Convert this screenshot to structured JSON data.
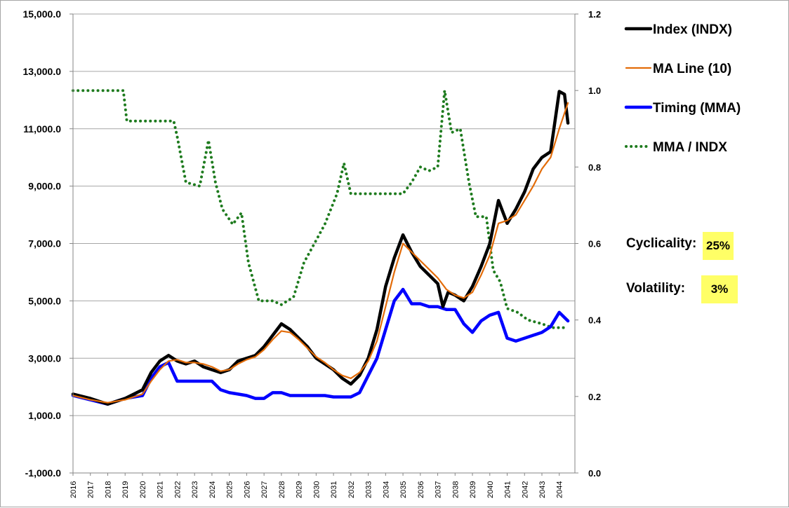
{
  "chart_data": {
    "type": "line",
    "title": "",
    "x_categories": [
      "2016",
      "2017",
      "2018",
      "2019",
      "2020",
      "2021",
      "2022",
      "2023",
      "2024",
      "2025",
      "2026",
      "2027",
      "2028",
      "2029",
      "2030",
      "2031",
      "2032",
      "2033",
      "2034",
      "2035",
      "2036",
      "2037",
      "2038",
      "2039",
      "2040",
      "2041",
      "2042",
      "2043",
      "2044"
    ],
    "y_left": {
      "min": -1000,
      "max": 15000,
      "ticks": [
        "-1,000.0",
        "1,000.0",
        "3,000.0",
        "5,000.0",
        "7,000.0",
        "9,000.0",
        "11,000.0",
        "13,000.0",
        "15,000.0"
      ]
    },
    "y_right": {
      "min": 0,
      "max": 1.2,
      "ticks": [
        "0.0",
        "0.2",
        "0.4",
        "0.6",
        "0.8",
        "1.0",
        "1.2"
      ]
    },
    "grid": "horizontal",
    "legend_position": "top-right",
    "series": [
      {
        "name": "Index (INDX)",
        "axis": "left",
        "color": "#000000",
        "style": "solid-thick",
        "points": [
          [
            2016.0,
            1750
          ],
          [
            2017.0,
            1600
          ],
          [
            2018.0,
            1400
          ],
          [
            2019.0,
            1600
          ],
          [
            2020.0,
            1900
          ],
          [
            2020.5,
            2500
          ],
          [
            2021.0,
            2900
          ],
          [
            2021.5,
            3100
          ],
          [
            2022.0,
            2900
          ],
          [
            2022.5,
            2800
          ],
          [
            2023.0,
            2900
          ],
          [
            2023.5,
            2700
          ],
          [
            2024.0,
            2600
          ],
          [
            2024.5,
            2500
          ],
          [
            2025.0,
            2600
          ],
          [
            2025.5,
            2900
          ],
          [
            2026.0,
            3000
          ],
          [
            2026.5,
            3100
          ],
          [
            2027.0,
            3400
          ],
          [
            2027.5,
            3800
          ],
          [
            2028.0,
            4200
          ],
          [
            2028.5,
            4000
          ],
          [
            2029.0,
            3700
          ],
          [
            2029.5,
            3400
          ],
          [
            2030.0,
            3000
          ],
          [
            2030.5,
            2800
          ],
          [
            2031.0,
            2600
          ],
          [
            2031.5,
            2300
          ],
          [
            2032.0,
            2100
          ],
          [
            2032.5,
            2400
          ],
          [
            2033.0,
            3000
          ],
          [
            2033.5,
            4000
          ],
          [
            2034.0,
            5500
          ],
          [
            2034.5,
            6500
          ],
          [
            2035.0,
            7300
          ],
          [
            2035.5,
            6700
          ],
          [
            2036.0,
            6200
          ],
          [
            2036.5,
            5900
          ],
          [
            2037.0,
            5600
          ],
          [
            2037.3,
            4800
          ],
          [
            2037.6,
            5300
          ],
          [
            2038.0,
            5200
          ],
          [
            2038.5,
            5000
          ],
          [
            2039.0,
            5500
          ],
          [
            2039.5,
            6200
          ],
          [
            2040.0,
            7000
          ],
          [
            2040.5,
            8500
          ],
          [
            2041.0,
            7700
          ],
          [
            2041.5,
            8200
          ],
          [
            2042.0,
            8800
          ],
          [
            2042.5,
            9600
          ],
          [
            2043.0,
            10000
          ],
          [
            2043.5,
            10200
          ],
          [
            2044.0,
            12300
          ],
          [
            2044.3,
            12200
          ],
          [
            2044.5,
            11200
          ]
        ]
      },
      {
        "name": "MA Line (10)",
        "axis": "left",
        "color": "#e36c09",
        "style": "solid",
        "points": [
          [
            2016.0,
            1700
          ],
          [
            2017.0,
            1550
          ],
          [
            2018.0,
            1450
          ],
          [
            2019.0,
            1550
          ],
          [
            2020.0,
            1750
          ],
          [
            2020.5,
            2200
          ],
          [
            2021.0,
            2600
          ],
          [
            2021.5,
            2900
          ],
          [
            2022.0,
            2950
          ],
          [
            2022.5,
            2850
          ],
          [
            2023.0,
            2850
          ],
          [
            2023.5,
            2800
          ],
          [
            2024.0,
            2700
          ],
          [
            2024.5,
            2550
          ],
          [
            2025.0,
            2600
          ],
          [
            2025.5,
            2800
          ],
          [
            2026.0,
            2950
          ],
          [
            2026.5,
            3050
          ],
          [
            2027.0,
            3300
          ],
          [
            2027.5,
            3650
          ],
          [
            2028.0,
            3950
          ],
          [
            2028.5,
            3900
          ],
          [
            2029.0,
            3650
          ],
          [
            2029.5,
            3350
          ],
          [
            2030.0,
            3050
          ],
          [
            2030.5,
            2850
          ],
          [
            2031.0,
            2600
          ],
          [
            2031.5,
            2400
          ],
          [
            2032.0,
            2300
          ],
          [
            2032.5,
            2500
          ],
          [
            2033.0,
            2900
          ],
          [
            2033.5,
            3600
          ],
          [
            2034.0,
            4800
          ],
          [
            2034.5,
            6000
          ],
          [
            2035.0,
            7000
          ],
          [
            2035.5,
            6700
          ],
          [
            2036.0,
            6400
          ],
          [
            2036.5,
            6100
          ],
          [
            2037.0,
            5800
          ],
          [
            2037.5,
            5400
          ],
          [
            2038.0,
            5200
          ],
          [
            2038.5,
            5100
          ],
          [
            2039.0,
            5300
          ],
          [
            2039.5,
            5900
          ],
          [
            2040.0,
            6600
          ],
          [
            2040.5,
            7700
          ],
          [
            2041.0,
            7800
          ],
          [
            2041.5,
            8000
          ],
          [
            2042.0,
            8500
          ],
          [
            2042.5,
            9000
          ],
          [
            2043.0,
            9600
          ],
          [
            2043.5,
            10000
          ],
          [
            2044.0,
            11000
          ],
          [
            2044.5,
            11900
          ]
        ]
      },
      {
        "name": "Timing (MMA)",
        "axis": "left",
        "color": "#0000ff",
        "style": "solid-thick",
        "points": [
          [
            2016.0,
            1700
          ],
          [
            2017.0,
            1550
          ],
          [
            2018.0,
            1400
          ],
          [
            2019.0,
            1600
          ],
          [
            2020.0,
            1700
          ],
          [
            2020.5,
            2300
          ],
          [
            2021.0,
            2700
          ],
          [
            2021.5,
            2850
          ],
          [
            2022.0,
            2200
          ],
          [
            2022.5,
            2200
          ],
          [
            2023.0,
            2200
          ],
          [
            2023.5,
            2200
          ],
          [
            2024.0,
            2200
          ],
          [
            2024.5,
            1900
          ],
          [
            2025.0,
            1800
          ],
          [
            2025.5,
            1750
          ],
          [
            2026.0,
            1700
          ],
          [
            2026.5,
            1600
          ],
          [
            2027.0,
            1600
          ],
          [
            2027.5,
            1800
          ],
          [
            2028.0,
            1800
          ],
          [
            2028.5,
            1700
          ],
          [
            2029.0,
            1700
          ],
          [
            2029.5,
            1700
          ],
          [
            2030.0,
            1700
          ],
          [
            2030.5,
            1700
          ],
          [
            2031.0,
            1650
          ],
          [
            2031.5,
            1650
          ],
          [
            2032.0,
            1650
          ],
          [
            2032.5,
            1800
          ],
          [
            2033.0,
            2400
          ],
          [
            2033.5,
            3000
          ],
          [
            2034.0,
            4000
          ],
          [
            2034.5,
            5000
          ],
          [
            2035.0,
            5400
          ],
          [
            2035.5,
            4900
          ],
          [
            2036.0,
            4900
          ],
          [
            2036.5,
            4800
          ],
          [
            2037.0,
            4800
          ],
          [
            2037.5,
            4700
          ],
          [
            2038.0,
            4700
          ],
          [
            2038.5,
            4200
          ],
          [
            2039.0,
            3900
          ],
          [
            2039.5,
            4300
          ],
          [
            2040.0,
            4500
          ],
          [
            2040.5,
            4600
          ],
          [
            2041.0,
            3700
          ],
          [
            2041.5,
            3600
          ],
          [
            2042.0,
            3700
          ],
          [
            2042.5,
            3800
          ],
          [
            2043.0,
            3900
          ],
          [
            2043.5,
            4100
          ],
          [
            2044.0,
            4600
          ],
          [
            2044.5,
            4300
          ]
        ]
      },
      {
        "name": "MMA / INDX",
        "axis": "right",
        "color": "#1e7b1e",
        "style": "dotted",
        "points": [
          [
            2016.0,
            1.0
          ],
          [
            2018.9,
            1.0
          ],
          [
            2019.1,
            0.92
          ],
          [
            2021.8,
            0.92
          ],
          [
            2022.0,
            0.88
          ],
          [
            2022.5,
            0.76
          ],
          [
            2023.3,
            0.75
          ],
          [
            2023.8,
            0.87
          ],
          [
            2024.2,
            0.76
          ],
          [
            2024.6,
            0.69
          ],
          [
            2025.2,
            0.65
          ],
          [
            2025.7,
            0.68
          ],
          [
            2026.1,
            0.55
          ],
          [
            2026.7,
            0.45
          ],
          [
            2027.5,
            0.45
          ],
          [
            2028.0,
            0.44
          ],
          [
            2028.7,
            0.46
          ],
          [
            2029.3,
            0.55
          ],
          [
            2029.9,
            0.6
          ],
          [
            2030.5,
            0.65
          ],
          [
            2031.2,
            0.73
          ],
          [
            2031.6,
            0.81
          ],
          [
            2032.0,
            0.73
          ],
          [
            2035.0,
            0.73
          ],
          [
            2035.5,
            0.76
          ],
          [
            2036.0,
            0.8
          ],
          [
            2036.5,
            0.79
          ],
          [
            2037.0,
            0.8
          ],
          [
            2037.4,
            1.0
          ],
          [
            2037.8,
            0.89
          ],
          [
            2038.3,
            0.9
          ],
          [
            2038.8,
            0.76
          ],
          [
            2039.2,
            0.67
          ],
          [
            2039.8,
            0.67
          ],
          [
            2040.2,
            0.53
          ],
          [
            2040.6,
            0.5
          ],
          [
            2041.0,
            0.43
          ],
          [
            2041.6,
            0.42
          ],
          [
            2042.2,
            0.4
          ],
          [
            2043.0,
            0.39
          ],
          [
            2043.6,
            0.38
          ],
          [
            2044.5,
            0.38
          ]
        ]
      }
    ]
  },
  "stats": {
    "cyclicality_label": "Cyclicality:",
    "cyclicality_value": "25%",
    "volatility_label": "Volatility:",
    "volatility_value": "3%"
  },
  "colors": {
    "grid": "#a6a6a6",
    "highlight": "#ffff66"
  }
}
